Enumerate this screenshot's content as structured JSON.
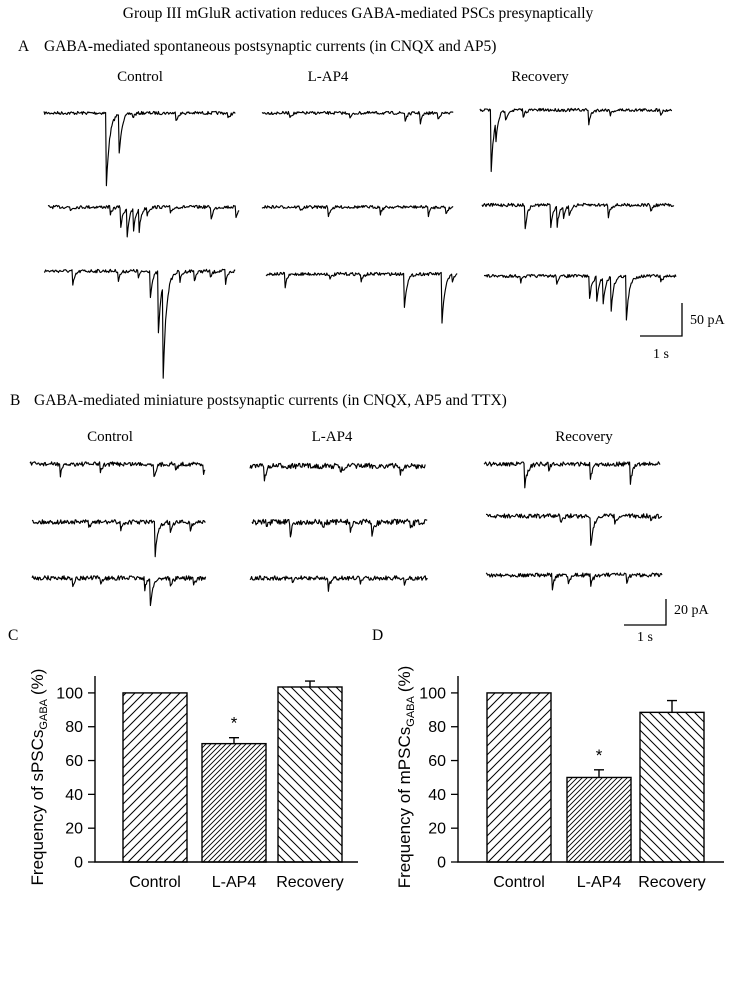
{
  "figure": {
    "title": "Group III mGluR activation reduces GABA-mediated PSCs presynaptically",
    "panel_a": {
      "letter": "A",
      "title": "GABA-mediated spontaneous postsynaptic currents (in CNQX and AP5)",
      "columns": [
        "Control",
        "L-AP4",
        "Recovery"
      ],
      "scale_current": "50 pA",
      "scale_time": "1 s"
    },
    "panel_b": {
      "letter": "B",
      "title": "GABA-mediated miniature postsynaptic currents (in CNQX, AP5 and TTX)",
      "columns": [
        "Control",
        "L-AP4",
        "Recovery"
      ],
      "scale_current": "20 pA",
      "scale_time": "1 s"
    },
    "panel_c": {
      "letter": "C"
    },
    "panel_d": {
      "letter": "D"
    }
  },
  "chart_data": [
    {
      "panel": "C",
      "type": "bar",
      "categories": [
        "Control",
        "L-AP4",
        "Recovery"
      ],
      "values": [
        100,
        70,
        103.5
      ],
      "errors": [
        0,
        3.5,
        3.5
      ],
      "significance": [
        "",
        "*",
        ""
      ],
      "hatch": [
        "right",
        "dense-right",
        "left"
      ],
      "ylabel": "Frequency of sPSCs",
      "ylabel_sub": "GABA",
      "ylabel_unit": "(%)",
      "ylim": [
        0,
        110
      ],
      "yticks": [
        0,
        20,
        40,
        60,
        80,
        100
      ]
    },
    {
      "panel": "D",
      "type": "bar",
      "categories": [
        "Control",
        "L-AP4",
        "Recovery"
      ],
      "values": [
        100,
        50,
        88.5
      ],
      "errors": [
        0,
        4.5,
        7
      ],
      "significance": [
        "",
        "*",
        ""
      ],
      "hatch": [
        "right",
        "dense-right",
        "left"
      ],
      "ylabel": "Frequency of mPSCs",
      "ylabel_sub": "GABA",
      "ylabel_unit": "(%)",
      "ylim": [
        0,
        110
      ],
      "yticks": [
        0,
        20,
        40,
        60,
        80,
        100
      ]
    }
  ]
}
